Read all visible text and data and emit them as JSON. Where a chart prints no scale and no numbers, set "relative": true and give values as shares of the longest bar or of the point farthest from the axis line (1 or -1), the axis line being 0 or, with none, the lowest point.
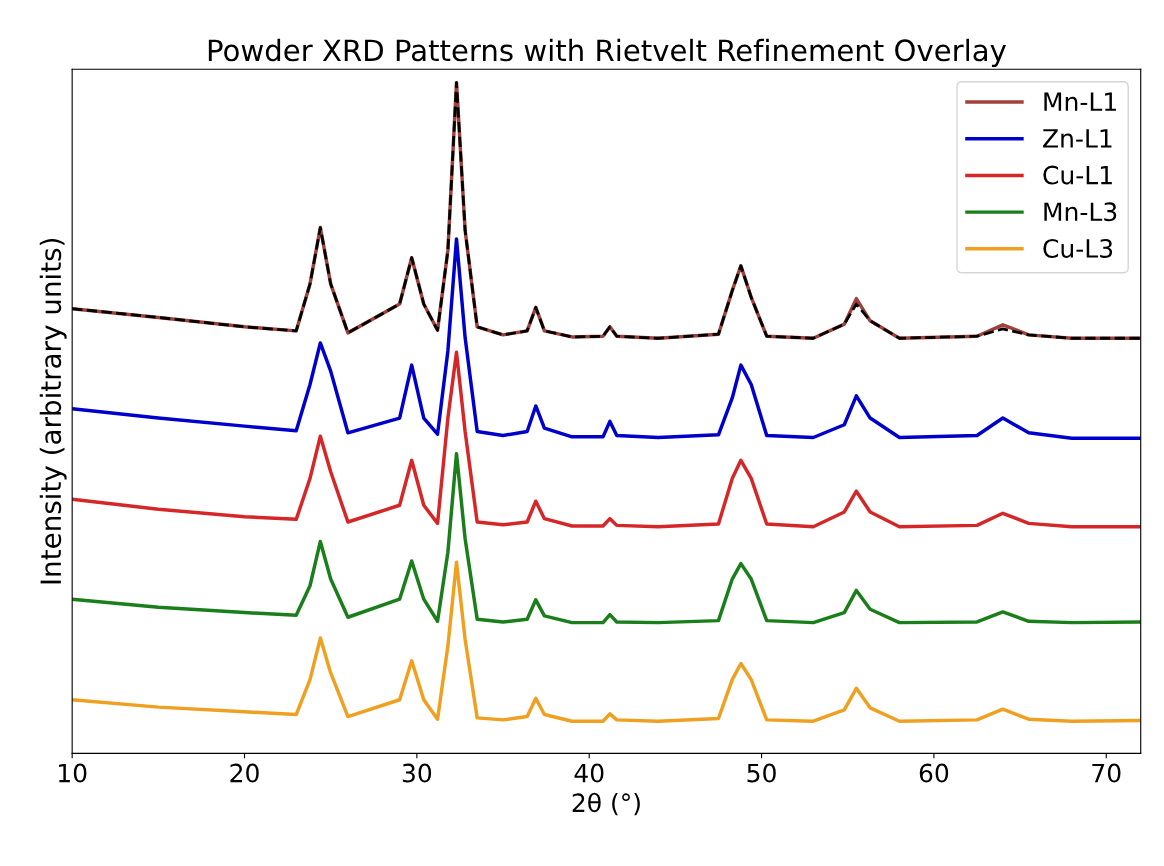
{
  "chart_data": {
    "type": "line",
    "title": "Powder XRD Patterns with Rietvelt Refinement Overlay",
    "xlabel": "2θ (°)",
    "ylabel": "Intensity (arbitrary units)",
    "relative": true,
    "x": [
      10,
      15,
      20,
      23,
      23.8,
      24.4,
      25.0,
      26,
      29.0,
      29.7,
      30.4,
      31.2,
      31.8,
      32.3,
      32.8,
      33.5,
      35,
      36.4,
      36.9,
      37.4,
      39,
      40.8,
      41.2,
      41.6,
      44,
      47.5,
      48.3,
      48.8,
      49.4,
      50.3,
      53,
      54.8,
      55.5,
      56.3,
      58,
      62.5,
      64.0,
      65.5,
      68,
      72
    ],
    "xlim": [
      10,
      72
    ],
    "xticks": [
      10,
      20,
      30,
      40,
      50,
      60,
      70
    ],
    "legend": "upper right",
    "grid": false,
    "tick_labels": "x",
    "series": [
      {
        "name": "Mn-L1",
        "color": "#a0413c",
        "values": [
          0.663,
          0.65,
          0.636,
          0.63,
          0.7,
          0.784,
          0.7,
          0.627,
          0.67,
          0.739,
          0.67,
          0.631,
          0.75,
          1.0,
          0.78,
          0.636,
          0.624,
          0.63,
          0.665,
          0.63,
          0.621,
          0.622,
          0.636,
          0.622,
          0.619,
          0.625,
          0.69,
          0.727,
          0.68,
          0.622,
          0.619,
          0.64,
          0.678,
          0.645,
          0.619,
          0.622,
          0.639,
          0.624,
          0.619,
          0.619
        ]
      },
      {
        "name": "Zn-L1",
        "color": "#0000cc",
        "values": [
          0.514,
          0.5,
          0.488,
          0.481,
          0.55,
          0.612,
          0.57,
          0.478,
          0.5,
          0.579,
          0.5,
          0.476,
          0.6,
          0.767,
          0.62,
          0.48,
          0.474,
          0.48,
          0.518,
          0.485,
          0.472,
          0.472,
          0.495,
          0.474,
          0.471,
          0.475,
          0.53,
          0.579,
          0.55,
          0.474,
          0.471,
          0.49,
          0.533,
          0.5,
          0.471,
          0.474,
          0.5,
          0.478,
          0.47,
          0.47
        ]
      },
      {
        "name": "Cu-L1",
        "color": "#d62728",
        "values": [
          0.379,
          0.364,
          0.353,
          0.349,
          0.41,
          0.473,
          0.42,
          0.345,
          0.37,
          0.437,
          0.37,
          0.343,
          0.5,
          0.598,
          0.48,
          0.345,
          0.341,
          0.345,
          0.376,
          0.35,
          0.339,
          0.339,
          0.35,
          0.34,
          0.338,
          0.342,
          0.41,
          0.437,
          0.41,
          0.342,
          0.338,
          0.36,
          0.391,
          0.36,
          0.338,
          0.34,
          0.358,
          0.343,
          0.338,
          0.338
        ]
      },
      {
        "name": "Mn-L3",
        "color": "#1a7f1a",
        "values": [
          0.23,
          0.218,
          0.21,
          0.206,
          0.25,
          0.316,
          0.26,
          0.203,
          0.23,
          0.287,
          0.23,
          0.197,
          0.3,
          0.447,
          0.32,
          0.2,
          0.196,
          0.2,
          0.229,
          0.205,
          0.195,
          0.195,
          0.207,
          0.196,
          0.195,
          0.198,
          0.26,
          0.283,
          0.26,
          0.198,
          0.195,
          0.21,
          0.243,
          0.215,
          0.195,
          0.196,
          0.211,
          0.197,
          0.195,
          0.196
        ]
      },
      {
        "name": "Cu-L3",
        "color": "#f0a020",
        "values": [
          0.08,
          0.069,
          0.062,
          0.058,
          0.11,
          0.172,
          0.12,
          0.055,
          0.08,
          0.138,
          0.08,
          0.051,
          0.16,
          0.285,
          0.17,
          0.053,
          0.05,
          0.055,
          0.082,
          0.058,
          0.048,
          0.048,
          0.059,
          0.05,
          0.048,
          0.052,
          0.11,
          0.134,
          0.11,
          0.05,
          0.048,
          0.065,
          0.097,
          0.068,
          0.048,
          0.05,
          0.066,
          0.051,
          0.048,
          0.049
        ]
      },
      {
        "color": "#000000",
        "line_style": "dashed",
        "values": [
          0.663,
          0.65,
          0.636,
          0.63,
          0.7,
          0.784,
          0.7,
          0.627,
          0.67,
          0.739,
          0.67,
          0.631,
          0.75,
          1.0,
          0.78,
          0.636,
          0.624,
          0.63,
          0.665,
          0.63,
          0.621,
          0.622,
          0.636,
          0.622,
          0.619,
          0.625,
          0.69,
          0.727,
          0.68,
          0.622,
          0.619,
          0.64,
          0.67,
          0.645,
          0.619,
          0.622,
          0.633,
          0.624,
          0.619,
          0.619
        ]
      }
    ]
  }
}
